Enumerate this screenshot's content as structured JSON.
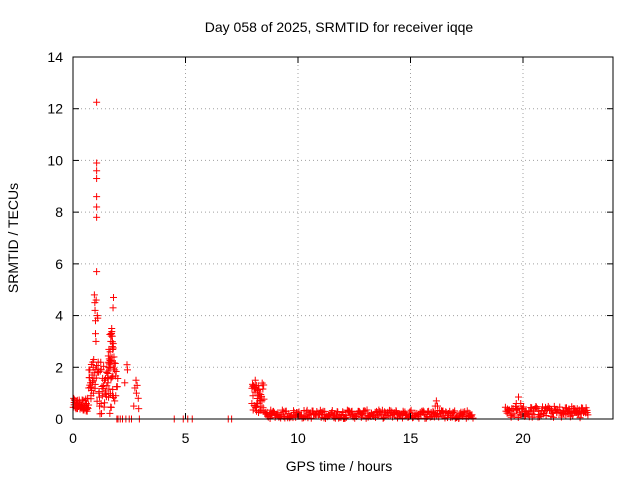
{
  "chart_data": {
    "type": "scatter",
    "title": "Day 058 of 2025, SRMTID for receiver iqqe",
    "xlabel": "GPS time / hours",
    "ylabel": "SRMTID / TECUs",
    "xlim": [
      0,
      24
    ],
    "ylim": [
      0,
      14
    ],
    "xticks": [
      0,
      5,
      10,
      15,
      20
    ],
    "yticks": [
      0,
      2,
      4,
      6,
      8,
      10,
      12,
      14
    ],
    "grid": true,
    "marker": "+",
    "color": "#ff0000",
    "series": [
      {
        "name": "SRMTID",
        "points": [
          [
            0.05,
            0.55
          ],
          [
            0.1,
            0.45
          ],
          [
            0.15,
            0.6
          ],
          [
            0.2,
            0.4
          ],
          [
            0.25,
            0.5
          ],
          [
            0.3,
            0.65
          ],
          [
            0.35,
            0.45
          ],
          [
            0.4,
            0.55
          ],
          [
            0.45,
            0.35
          ],
          [
            0.5,
            0.5
          ],
          [
            0.55,
            0.7
          ],
          [
            0.6,
            0.6
          ],
          [
            0.65,
            0.8
          ],
          [
            0.7,
            1.2
          ],
          [
            0.72,
            1.6
          ],
          [
            0.75,
            1.9
          ],
          [
            0.78,
            1.4
          ],
          [
            0.8,
            0.9
          ],
          [
            0.82,
            1.1
          ],
          [
            0.85,
            1.7
          ],
          [
            0.88,
            2.2
          ],
          [
            0.9,
            2.0
          ],
          [
            0.92,
            2.3
          ],
          [
            0.95,
            4.8
          ],
          [
            0.97,
            4.5
          ],
          [
            0.98,
            4.2
          ],
          [
            1.0,
            3.8
          ],
          [
            1.0,
            3.3
          ],
          [
            1.02,
            3.0
          ],
          [
            1.03,
            4.6
          ],
          [
            1.05,
            5.7
          ],
          [
            1.05,
            7.8
          ],
          [
            1.05,
            8.2
          ],
          [
            1.05,
            8.6
          ],
          [
            1.05,
            9.3
          ],
          [
            1.05,
            9.6
          ],
          [
            1.05,
            9.9
          ],
          [
            1.05,
            12.25
          ],
          [
            1.08,
            4.0
          ],
          [
            1.1,
            3.9
          ],
          [
            1.12,
            2.2
          ],
          [
            1.15,
            1.0
          ],
          [
            1.18,
            0.5
          ],
          [
            1.2,
            0.2
          ],
          [
            1.25,
            0.6
          ],
          [
            1.3,
            0.9
          ],
          [
            1.35,
            1.3
          ],
          [
            1.4,
            1.5
          ],
          [
            1.45,
            1.0
          ],
          [
            1.5,
            1.8
          ],
          [
            1.55,
            1.4
          ],
          [
            1.6,
            2.0
          ],
          [
            1.65,
            2.6
          ],
          [
            1.68,
            3.0
          ],
          [
            1.7,
            3.3
          ],
          [
            1.72,
            3.5
          ],
          [
            1.75,
            2.8
          ],
          [
            1.78,
            4.3
          ],
          [
            1.8,
            4.7
          ],
          [
            1.82,
            2.4
          ],
          [
            1.85,
            1.9
          ],
          [
            1.9,
            0.9
          ],
          [
            1.95,
            0.0
          ],
          [
            2.0,
            0.0
          ],
          [
            2.1,
            0.0
          ],
          [
            2.2,
            0.0
          ],
          [
            2.3,
            1.4
          ],
          [
            2.35,
            0.0
          ],
          [
            2.4,
            2.1
          ],
          [
            2.42,
            1.9
          ],
          [
            2.5,
            0.0
          ],
          [
            2.6,
            0.0
          ],
          [
            2.7,
            0.5
          ],
          [
            2.75,
            1.2
          ],
          [
            2.8,
            1.5
          ],
          [
            2.82,
            1.0
          ],
          [
            2.85,
            1.3
          ],
          [
            2.9,
            0.8
          ],
          [
            2.92,
            0.4
          ],
          [
            2.95,
            0.0
          ],
          [
            4.5,
            0.0
          ],
          [
            4.9,
            0.0
          ],
          [
            5.1,
            0.0
          ],
          [
            5.3,
            0.0
          ],
          [
            6.9,
            0.0
          ],
          [
            7.05,
            0.0
          ],
          [
            7.95,
            0.6
          ],
          [
            8.0,
            0.9
          ],
          [
            8.05,
            1.2
          ],
          [
            8.1,
            1.5
          ],
          [
            8.15,
            1.3
          ],
          [
            8.2,
            1.1
          ],
          [
            8.25,
            0.9
          ],
          [
            8.3,
            0.7
          ],
          [
            8.35,
            0.5
          ],
          [
            8.45,
            0.3
          ],
          [
            8.6,
            0.2
          ],
          [
            8.8,
            0.15
          ],
          [
            9.2,
            0.1
          ],
          [
            9.6,
            0.1
          ],
          [
            10.0,
            0.1
          ],
          [
            10.4,
            0.12
          ],
          [
            10.8,
            0.15
          ],
          [
            11.2,
            0.18
          ],
          [
            11.6,
            0.2
          ],
          [
            12.0,
            0.25
          ],
          [
            12.4,
            0.3
          ],
          [
            12.8,
            0.2
          ],
          [
            13.2,
            0.15
          ],
          [
            13.6,
            0.12
          ],
          [
            14.0,
            0.15
          ],
          [
            14.4,
            0.18
          ],
          [
            14.8,
            0.2
          ],
          [
            15.2,
            0.22
          ],
          [
            15.6,
            0.25
          ],
          [
            16.0,
            0.3
          ],
          [
            16.1,
            0.5
          ],
          [
            16.15,
            0.7
          ],
          [
            16.2,
            0.5
          ],
          [
            16.4,
            0.3
          ],
          [
            16.8,
            0.2
          ],
          [
            17.2,
            0.15
          ],
          [
            17.6,
            0.12
          ],
          [
            19.3,
            0.3
          ],
          [
            19.5,
            0.4
          ],
          [
            19.7,
            0.6
          ],
          [
            19.8,
            0.85
          ],
          [
            19.9,
            0.6
          ],
          [
            20.1,
            0.3
          ],
          [
            20.4,
            0.2
          ],
          [
            20.7,
            0.3
          ],
          [
            21.0,
            0.45
          ],
          [
            21.2,
            0.35
          ],
          [
            21.5,
            0.25
          ],
          [
            21.8,
            0.2
          ],
          [
            22.1,
            0.25
          ],
          [
            22.3,
            0.4
          ],
          [
            22.5,
            0.35
          ],
          [
            22.7,
            0.3
          ],
          [
            22.85,
            0.25
          ]
        ]
      }
    ],
    "dense_regions": [
      {
        "x_from": 0.0,
        "x_to": 0.7,
        "y_low": 0.3,
        "y_high": 0.8,
        "count": 35
      },
      {
        "x_from": 0.7,
        "x_to": 2.0,
        "y_low": 0.2,
        "y_high": 2.2,
        "count": 60
      },
      {
        "x_from": 1.55,
        "x_to": 1.8,
        "y_low": 1.5,
        "y_high": 3.4,
        "count": 25
      },
      {
        "x_from": 7.95,
        "x_to": 8.5,
        "y_low": 0.2,
        "y_high": 1.4,
        "count": 30
      },
      {
        "x_from": 8.5,
        "x_to": 17.8,
        "y_low": 0.02,
        "y_high": 0.35,
        "count": 260
      },
      {
        "x_from": 19.2,
        "x_to": 22.9,
        "y_low": 0.05,
        "y_high": 0.5,
        "count": 110
      }
    ]
  }
}
